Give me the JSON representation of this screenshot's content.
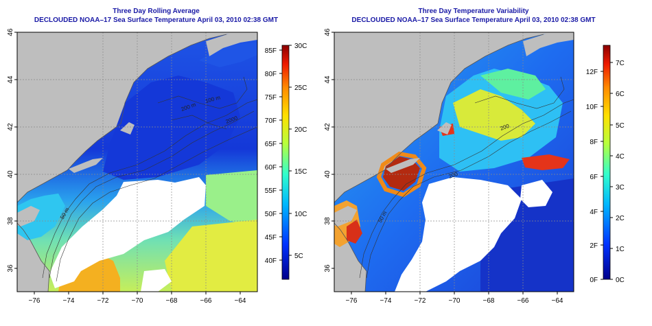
{
  "left_panel": {
    "title": "Three Day Rolling Average",
    "subtitle": "DECLOUDED NOAA–17 Sea Surface Temperature April 03, 2010 02:38 GMT",
    "lat_ticks": [
      "46",
      "44",
      "42",
      "40",
      "38",
      "36"
    ],
    "lon_ticks": [
      "−76",
      "−74",
      "−72",
      "−70",
      "−68",
      "−66",
      "−64"
    ],
    "colorbar_f": [
      "85F",
      "80F",
      "75F",
      "70F",
      "65F",
      "60F",
      "55F",
      "50F",
      "45F",
      "40F"
    ],
    "colorbar_c": [
      "30C",
      "25C",
      "20C",
      "15C",
      "10C",
      "5C"
    ],
    "contour_labels": [
      "200 m",
      "2000",
      "50 m",
      "100 m"
    ]
  },
  "right_panel": {
    "title": "Three Day Temperature Variability",
    "subtitle": "DECLOUDED NOAA–17 Sea Surface Temperature April 03, 2010 02:38 GMT",
    "lat_ticks": [
      "46",
      "44",
      "42",
      "40",
      "38",
      "36"
    ],
    "lon_ticks": [
      "−76",
      "−74",
      "−72",
      "−70",
      "−68",
      "−66",
      "−64"
    ],
    "colorbar_f": [
      "12F",
      "10F",
      "8F",
      "6F",
      "4F",
      "2F",
      "0F"
    ],
    "colorbar_c": [
      "7C",
      "6C",
      "5C",
      "4C",
      "3C",
      "2C",
      "1C",
      "0C"
    ],
    "contour_labels": [
      "200",
      "50 m",
      "200"
    ]
  },
  "colors": {
    "title_text": "#1a1aa6",
    "land": "#bebebe",
    "no_data": "#ffffff",
    "grid": "#8a8a8a"
  },
  "map_extent": {
    "lon": [
      -77,
      -63
    ],
    "lat": [
      35,
      46
    ]
  }
}
